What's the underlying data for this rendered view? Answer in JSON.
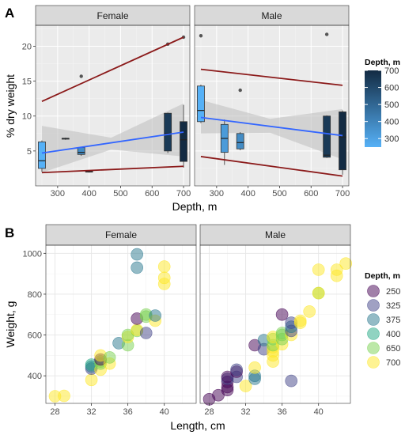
{
  "chart_data": [
    {
      "panel_label": "A",
      "type": "box",
      "facets": [
        "Female",
        "Male"
      ],
      "xlabel": "Depth, m",
      "ylabel": "% dry weight",
      "xticks": [
        300,
        400,
        500,
        600,
        700
      ],
      "yticks": [
        5,
        10,
        15,
        20
      ],
      "xlim": [
        230,
        720
      ],
      "ylim": [
        0,
        23
      ],
      "legend": {
        "title": "Depth, m",
        "ticks": [
          300,
          400,
          500,
          600,
          700
        ],
        "range": [
          250,
          700
        ],
        "position": "right"
      },
      "boxes": {
        "Female": [
          {
            "depth": 250,
            "min": 2.0,
            "q1": 2.5,
            "median": 3.6,
            "q3": 6.3,
            "max": 6.5
          },
          {
            "depth": 325,
            "min": 6.6,
            "q1": 6.7,
            "median": 6.8,
            "q3": 6.8,
            "max": 6.9
          },
          {
            "depth": 375,
            "min": 4.3,
            "q1": 4.5,
            "median": 4.8,
            "q3": 5.5,
            "max": 5.5,
            "outliers": [
              15.7
            ]
          },
          {
            "depth": 400,
            "min": 1.9,
            "q1": 2.0,
            "median": 2.0,
            "q3": 2.1,
            "max": 2.1
          },
          {
            "depth": 650,
            "min": 4.7,
            "q1": 5.0,
            "median": 7.5,
            "q3": 10.4,
            "max": 10.5,
            "outliers": [
              20.3
            ]
          },
          {
            "depth": 700,
            "min": 2.6,
            "q1": 3.5,
            "median": 6.6,
            "q3": 9.2,
            "max": 11.6,
            "outliers": [
              21.3
            ]
          }
        ],
        "Male": [
          {
            "depth": 250,
            "min": 9.0,
            "q1": 9.2,
            "median": 10.8,
            "q3": 14.3,
            "max": 14.5,
            "outliers": [
              21.5
            ]
          },
          {
            "depth": 325,
            "min": 3.0,
            "q1": 4.8,
            "median": 6.8,
            "q3": 8.8,
            "max": 9.5
          },
          {
            "depth": 375,
            "min": 5.1,
            "q1": 5.3,
            "median": 6.2,
            "q3": 7.5,
            "max": 7.7,
            "outliers": [
              13.7
            ]
          },
          {
            "depth": 650,
            "min": 4.0,
            "q1": 4.1,
            "median": 4.4,
            "q3": 10.0,
            "max": 10.1,
            "outliers": [
              21.7
            ]
          },
          {
            "depth": 700,
            "min": 1.6,
            "q1": 2.3,
            "median": 7.0,
            "q3": 10.6,
            "max": 10.8
          }
        ]
      },
      "fit_lines": {
        "Female": {
          "blue": [
            [
              250,
              4.7
            ],
            [
              700,
              7.7
            ]
          ],
          "red_upper": [
            [
              250,
              12.1
            ],
            [
              700,
              21.3
            ]
          ],
          "red_lower": [
            [
              250,
              1.9
            ],
            [
              700,
              2.8
            ]
          ]
        },
        "Male": {
          "blue": [
            [
              250,
              9.8
            ],
            [
              700,
              7.2
            ]
          ],
          "red_upper": [
            [
              250,
              16.7
            ],
            [
              700,
              14.4
            ]
          ],
          "red_lower": [
            [
              250,
              4.2
            ],
            [
              700,
              1.4
            ]
          ]
        }
      },
      "ci_band": {
        "Female": [
          [
            250,
            1.9,
            8.6
          ],
          [
            470,
            5.2,
            6.9
          ],
          [
            700,
            4.2,
            11.8
          ]
        ],
        "Male": [
          [
            250,
            7.5,
            12.3
          ],
          [
            470,
            7.6,
            9.6
          ],
          [
            700,
            3.8,
            11.0
          ]
        ]
      }
    },
    {
      "panel_label": "B",
      "type": "scatter",
      "facets": [
        "Female",
        "Male"
      ],
      "xlabel": "Length, cm",
      "ylabel": "Weight, g",
      "xticks": [
        28,
        32,
        36,
        40
      ],
      "yticks": [
        400,
        600,
        800,
        1000
      ],
      "xlim": [
        27,
        43.5
      ],
      "ylim": [
        265,
        1040
      ],
      "legend": {
        "title": "Depth, m",
        "entries": [
          {
            "label": "250",
            "color": "#440154"
          },
          {
            "label": "325",
            "color": "#414487"
          },
          {
            "label": "375",
            "color": "#2a788e"
          },
          {
            "label": "400",
            "color": "#22a884"
          },
          {
            "label": "650",
            "color": "#7ad151"
          },
          {
            "label": "700",
            "color": "#fde725"
          }
        ],
        "position": "right"
      },
      "points": {
        "Female": [
          {
            "x": 28,
            "y": 300,
            "depth": 700
          },
          {
            "x": 29,
            "y": 302,
            "depth": 700
          },
          {
            "x": 32,
            "y": 380,
            "depth": 700
          },
          {
            "x": 32,
            "y": 435,
            "depth": 325
          },
          {
            "x": 32,
            "y": 445,
            "depth": 375
          },
          {
            "x": 32,
            "y": 455,
            "depth": 400
          },
          {
            "x": 33,
            "y": 430,
            "depth": 700
          },
          {
            "x": 33,
            "y": 460,
            "depth": 650
          },
          {
            "x": 33,
            "y": 470,
            "depth": 650
          },
          {
            "x": 33,
            "y": 480,
            "depth": 250
          },
          {
            "x": 33,
            "y": 500,
            "depth": 700
          },
          {
            "x": 34,
            "y": 460,
            "depth": 700
          },
          {
            "x": 34,
            "y": 490,
            "depth": 650
          },
          {
            "x": 35,
            "y": 560,
            "depth": 375
          },
          {
            "x": 36,
            "y": 550,
            "depth": 650
          },
          {
            "x": 36,
            "y": 590,
            "depth": 700
          },
          {
            "x": 36,
            "y": 600,
            "depth": 650
          },
          {
            "x": 37,
            "y": 620,
            "depth": 650
          },
          {
            "x": 37,
            "y": 625,
            "depth": 700
          },
          {
            "x": 37,
            "y": 680,
            "depth": 250
          },
          {
            "x": 37,
            "y": 930,
            "depth": 375
          },
          {
            "x": 37,
            "y": 995,
            "depth": 375
          },
          {
            "x": 38,
            "y": 610,
            "depth": 325
          },
          {
            "x": 38,
            "y": 690,
            "depth": 650
          },
          {
            "x": 38,
            "y": 700,
            "depth": 650
          },
          {
            "x": 39,
            "y": 670,
            "depth": 700
          },
          {
            "x": 39,
            "y": 695,
            "depth": 375
          },
          {
            "x": 40,
            "y": 850,
            "depth": 700
          },
          {
            "x": 40,
            "y": 880,
            "depth": 700
          },
          {
            "x": 40,
            "y": 935,
            "depth": 700
          }
        ],
        "Male": [
          {
            "x": 28,
            "y": 285,
            "depth": 250
          },
          {
            "x": 29,
            "y": 305,
            "depth": 250
          },
          {
            "x": 30,
            "y": 330,
            "depth": 250
          },
          {
            "x": 30,
            "y": 345,
            "depth": 250
          },
          {
            "x": 30,
            "y": 370,
            "depth": 250
          },
          {
            "x": 30,
            "y": 385,
            "depth": 325
          },
          {
            "x": 30,
            "y": 395,
            "depth": 250
          },
          {
            "x": 31,
            "y": 395,
            "depth": 325
          },
          {
            "x": 31,
            "y": 420,
            "depth": 250
          },
          {
            "x": 31,
            "y": 430,
            "depth": 325
          },
          {
            "x": 32,
            "y": 350,
            "depth": 700
          },
          {
            "x": 33,
            "y": 385,
            "depth": 375
          },
          {
            "x": 33,
            "y": 400,
            "depth": 375
          },
          {
            "x": 33,
            "y": 440,
            "depth": 700
          },
          {
            "x": 33,
            "y": 550,
            "depth": 250
          },
          {
            "x": 34,
            "y": 530,
            "depth": 325
          },
          {
            "x": 34,
            "y": 575,
            "depth": 375
          },
          {
            "x": 35,
            "y": 470,
            "depth": 700
          },
          {
            "x": 35,
            "y": 500,
            "depth": 700
          },
          {
            "x": 35,
            "y": 520,
            "depth": 700
          },
          {
            "x": 35,
            "y": 540,
            "depth": 700
          },
          {
            "x": 35,
            "y": 550,
            "depth": 650
          },
          {
            "x": 35,
            "y": 580,
            "depth": 650
          },
          {
            "x": 35,
            "y": 590,
            "depth": 700
          },
          {
            "x": 36,
            "y": 555,
            "depth": 700
          },
          {
            "x": 36,
            "y": 580,
            "depth": 650
          },
          {
            "x": 36,
            "y": 600,
            "depth": 650
          },
          {
            "x": 36,
            "y": 610,
            "depth": 650
          },
          {
            "x": 36,
            "y": 700,
            "depth": 250
          },
          {
            "x": 37,
            "y": 375,
            "depth": 325
          },
          {
            "x": 37,
            "y": 600,
            "depth": 700
          },
          {
            "x": 37,
            "y": 620,
            "depth": 325
          },
          {
            "x": 37,
            "y": 640,
            "depth": 375
          },
          {
            "x": 37,
            "y": 660,
            "depth": 325
          },
          {
            "x": 38,
            "y": 660,
            "depth": 700
          },
          {
            "x": 38,
            "y": 670,
            "depth": 700
          },
          {
            "x": 39,
            "y": 715,
            "depth": 700
          },
          {
            "x": 40,
            "y": 805,
            "depth": 650
          },
          {
            "x": 40,
            "y": 805,
            "depth": 700
          },
          {
            "x": 40,
            "y": 920,
            "depth": 700
          },
          {
            "x": 42,
            "y": 890,
            "depth": 700
          },
          {
            "x": 42,
            "y": 920,
            "depth": 700
          },
          {
            "x": 43,
            "y": 950,
            "depth": 700
          }
        ]
      }
    }
  ]
}
